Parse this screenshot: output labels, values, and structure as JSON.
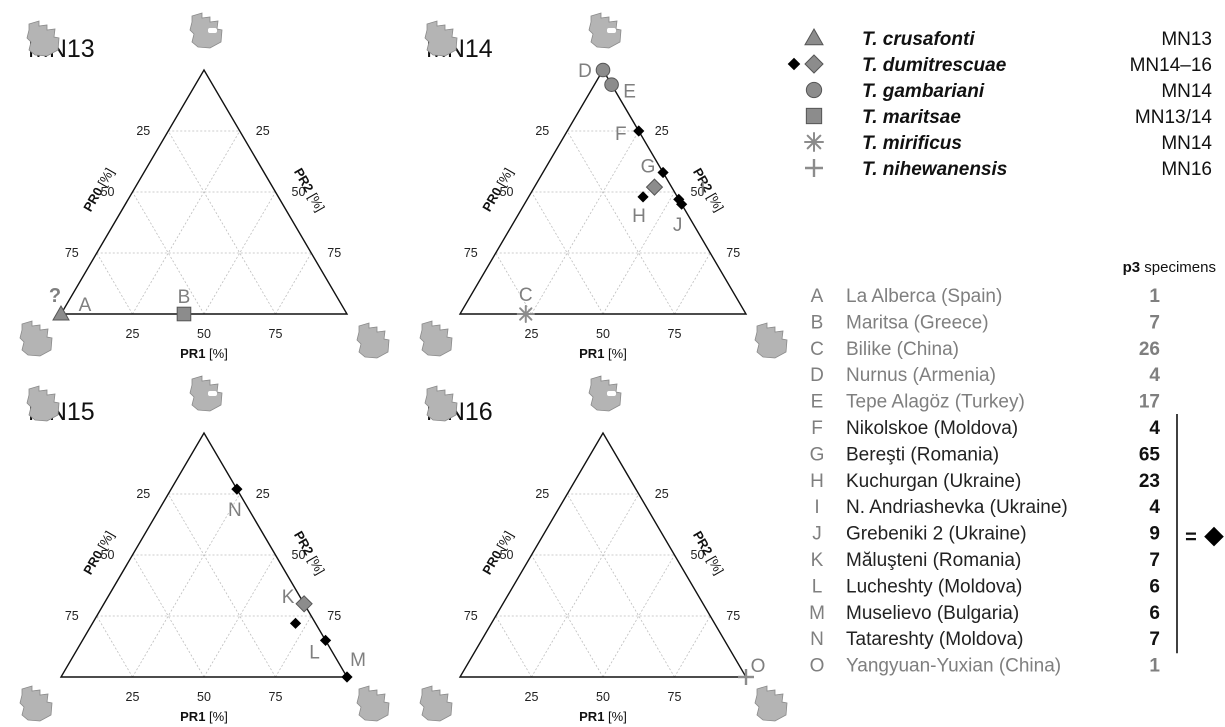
{
  "colors": {
    "axis": "#111111",
    "grid": "#bdbdbd",
    "marker_fill": "#8c8c8c",
    "marker_stroke": "#555555",
    "site_letter": "#7f7f7f",
    "diamond_black": "#000000"
  },
  "icons": {
    "tooth_outline": "tooth-outline-icon",
    "tooth_with_pulp": "tooth-with-pulp-icon",
    "legend_bracket_marker": "diamond-icon"
  },
  "chart_data": [
    {
      "type": "ternary",
      "title": "MN13",
      "axis_labels": {
        "left": "PR0",
        "right": "PR2",
        "bottom": "PR1",
        "unit": "[%]"
      },
      "ticks": {
        "left": [
          "25",
          "50",
          "75"
        ],
        "right": [
          "75",
          "50",
          "25"
        ],
        "bottom": [
          "25",
          "50",
          "75"
        ]
      },
      "grid": true,
      "points": [
        {
          "site": "A",
          "species": "T. crusafonti",
          "marker": "triangle",
          "pr0": 100,
          "pr1": 0,
          "pr2": 0,
          "label_prefix": "?"
        },
        {
          "site": "B",
          "species": "T. maritsae",
          "marker": "square",
          "pr0": 57,
          "pr1": 43,
          "pr2": 0
        }
      ]
    },
    {
      "type": "ternary",
      "title": "MN14",
      "axis_labels": {
        "left": "PR0",
        "right": "PR2",
        "bottom": "PR1",
        "unit": "[%]"
      },
      "ticks": {
        "left": [
          "25",
          "50",
          "75"
        ],
        "right": [
          "75",
          "50",
          "25"
        ],
        "bottom": [
          "25",
          "50",
          "75"
        ]
      },
      "grid": true,
      "points": [
        {
          "site": "C",
          "species": "T. mirificus",
          "marker": "asterisk",
          "pr0": 77,
          "pr1": 23,
          "pr2": 0
        },
        {
          "site": "D",
          "species": "T. gambariani",
          "marker": "circle",
          "pr0": 0,
          "pr1": 0,
          "pr2": 100
        },
        {
          "site": "E",
          "species": "T. gambariani",
          "marker": "circle",
          "pr0": 0,
          "pr1": 6,
          "pr2": 94
        },
        {
          "site": "F",
          "species": "T. dumitrescuae",
          "marker": "diamond-black",
          "pr0": 0,
          "pr1": 25,
          "pr2": 75
        },
        {
          "site": "G",
          "species": "T. dumitrescuae",
          "marker": "diamond-black",
          "pr0": 0,
          "pr1": 42,
          "pr2": 58
        },
        {
          "site": "G",
          "species": "T. dumitrescuae",
          "marker": "diamond-grey",
          "pr0": 6,
          "pr1": 42,
          "pr2": 52
        },
        {
          "site": "H",
          "species": "T. dumitrescuae",
          "marker": "diamond-black",
          "pr0": 12,
          "pr1": 40,
          "pr2": 48
        },
        {
          "site": "I",
          "species": "T. dumitrescuae",
          "marker": "diamond-black",
          "pr0": 0,
          "pr1": 53,
          "pr2": 47
        },
        {
          "site": "J",
          "species": "T. dumitrescuae",
          "marker": "diamond-black",
          "pr0": 0,
          "pr1": 55,
          "pr2": 45
        }
      ]
    },
    {
      "type": "ternary",
      "title": "MN15",
      "axis_labels": {
        "left": "PR0",
        "right": "PR2",
        "bottom": "PR1",
        "unit": "[%]"
      },
      "ticks": {
        "left": [
          "25",
          "50",
          "75"
        ],
        "right": [
          "75",
          "50",
          "25"
        ],
        "bottom": [
          "25",
          "50",
          "75"
        ]
      },
      "grid": true,
      "points": [
        {
          "site": "N",
          "species": "T. dumitrescuae",
          "marker": "diamond-black",
          "pr0": 0,
          "pr1": 23,
          "pr2": 77
        },
        {
          "site": "K",
          "species": "T. dumitrescuae",
          "marker": "diamond-grey",
          "pr0": 0,
          "pr1": 70,
          "pr2": 30
        },
        {
          "site": "K",
          "species": "T. dumitrescuae",
          "marker": "diamond-black",
          "pr0": 7,
          "pr1": 71,
          "pr2": 22
        },
        {
          "site": "L",
          "species": "T. dumitrescuae",
          "marker": "diamond-black",
          "pr0": 0,
          "pr1": 85,
          "pr2": 15
        },
        {
          "site": "M",
          "species": "T. dumitrescuae",
          "marker": "diamond-black",
          "pr0": 0,
          "pr1": 100,
          "pr2": 0
        }
      ]
    },
    {
      "type": "ternary",
      "title": "MN16",
      "axis_labels": {
        "left": "PR0",
        "right": "PR2",
        "bottom": "PR1",
        "unit": "[%]"
      },
      "ticks": {
        "left": [
          "25",
          "50",
          "75"
        ],
        "right": [
          "75",
          "50",
          "25"
        ],
        "bottom": [
          "25",
          "50",
          "75"
        ]
      },
      "grid": true,
      "points": [
        {
          "site": "O",
          "species": "T. nihewanensis",
          "marker": "plus",
          "pr0": 0,
          "pr1": 100,
          "pr2": 0
        }
      ]
    }
  ],
  "legend": {
    "species": [
      {
        "name": "T. crusafonti",
        "marker": "triangle",
        "age": "MN13"
      },
      {
        "name": "T. dumitrescuae",
        "marker": "diamond-pair",
        "age": "MN14–16"
      },
      {
        "name": "T. gambariani",
        "marker": "circle",
        "age": "MN14"
      },
      {
        "name": "T. maritsae",
        "marker": "square",
        "age": "MN13/14"
      },
      {
        "name": "T. mirificus",
        "marker": "asterisk",
        "age": "MN14"
      },
      {
        "name": "T. nihewanensis",
        "marker": "plus",
        "age": "MN16"
      }
    ],
    "specimens_header": {
      "bold": "p3",
      "rest": " specimens"
    },
    "sites": [
      {
        "letter": "A",
        "name": "La Alberca (Spain)",
        "count": "1",
        "bracketed": false
      },
      {
        "letter": "B",
        "name": "Maritsa (Greece)",
        "count": "7",
        "bracketed": false
      },
      {
        "letter": "C",
        "name": "Bilike (China)",
        "count": "26",
        "bracketed": false
      },
      {
        "letter": "D",
        "name": "Nurnus (Armenia)",
        "count": "4",
        "bracketed": false
      },
      {
        "letter": "E",
        "name": "Tepe Alagöz (Turkey)",
        "count": "17",
        "bracketed": false
      },
      {
        "letter": "F",
        "name": "Nikolskoe (Moldova)",
        "count": "4",
        "bracketed": true
      },
      {
        "letter": "G",
        "name": "Bereşti (Romania)",
        "count": "65",
        "bracketed": true
      },
      {
        "letter": "H",
        "name": "Kuchurgan (Ukraine)",
        "count": "23",
        "bracketed": true
      },
      {
        "letter": "I",
        "name": "N. Andriashevka (Ukraine)",
        "count": "4",
        "bracketed": true
      },
      {
        "letter": "J",
        "name": "Grebeniki 2 (Ukraine)",
        "count": "9",
        "bracketed": true
      },
      {
        "letter": "K",
        "name": "Măluşteni (Romania)",
        "count": "7",
        "bracketed": true
      },
      {
        "letter": "L",
        "name": "Lucheshty (Moldova)",
        "count": "6",
        "bracketed": true
      },
      {
        "letter": "M",
        "name": "Muselievo (Bulgaria)",
        "count": "6",
        "bracketed": true
      },
      {
        "letter": "N",
        "name": "Tatareshty (Moldova)",
        "count": "7",
        "bracketed": true
      },
      {
        "letter": "O",
        "name": "Yangyuan-Yuxian (China)",
        "count": "1",
        "bracketed": false
      }
    ],
    "bracket_equals": "="
  }
}
